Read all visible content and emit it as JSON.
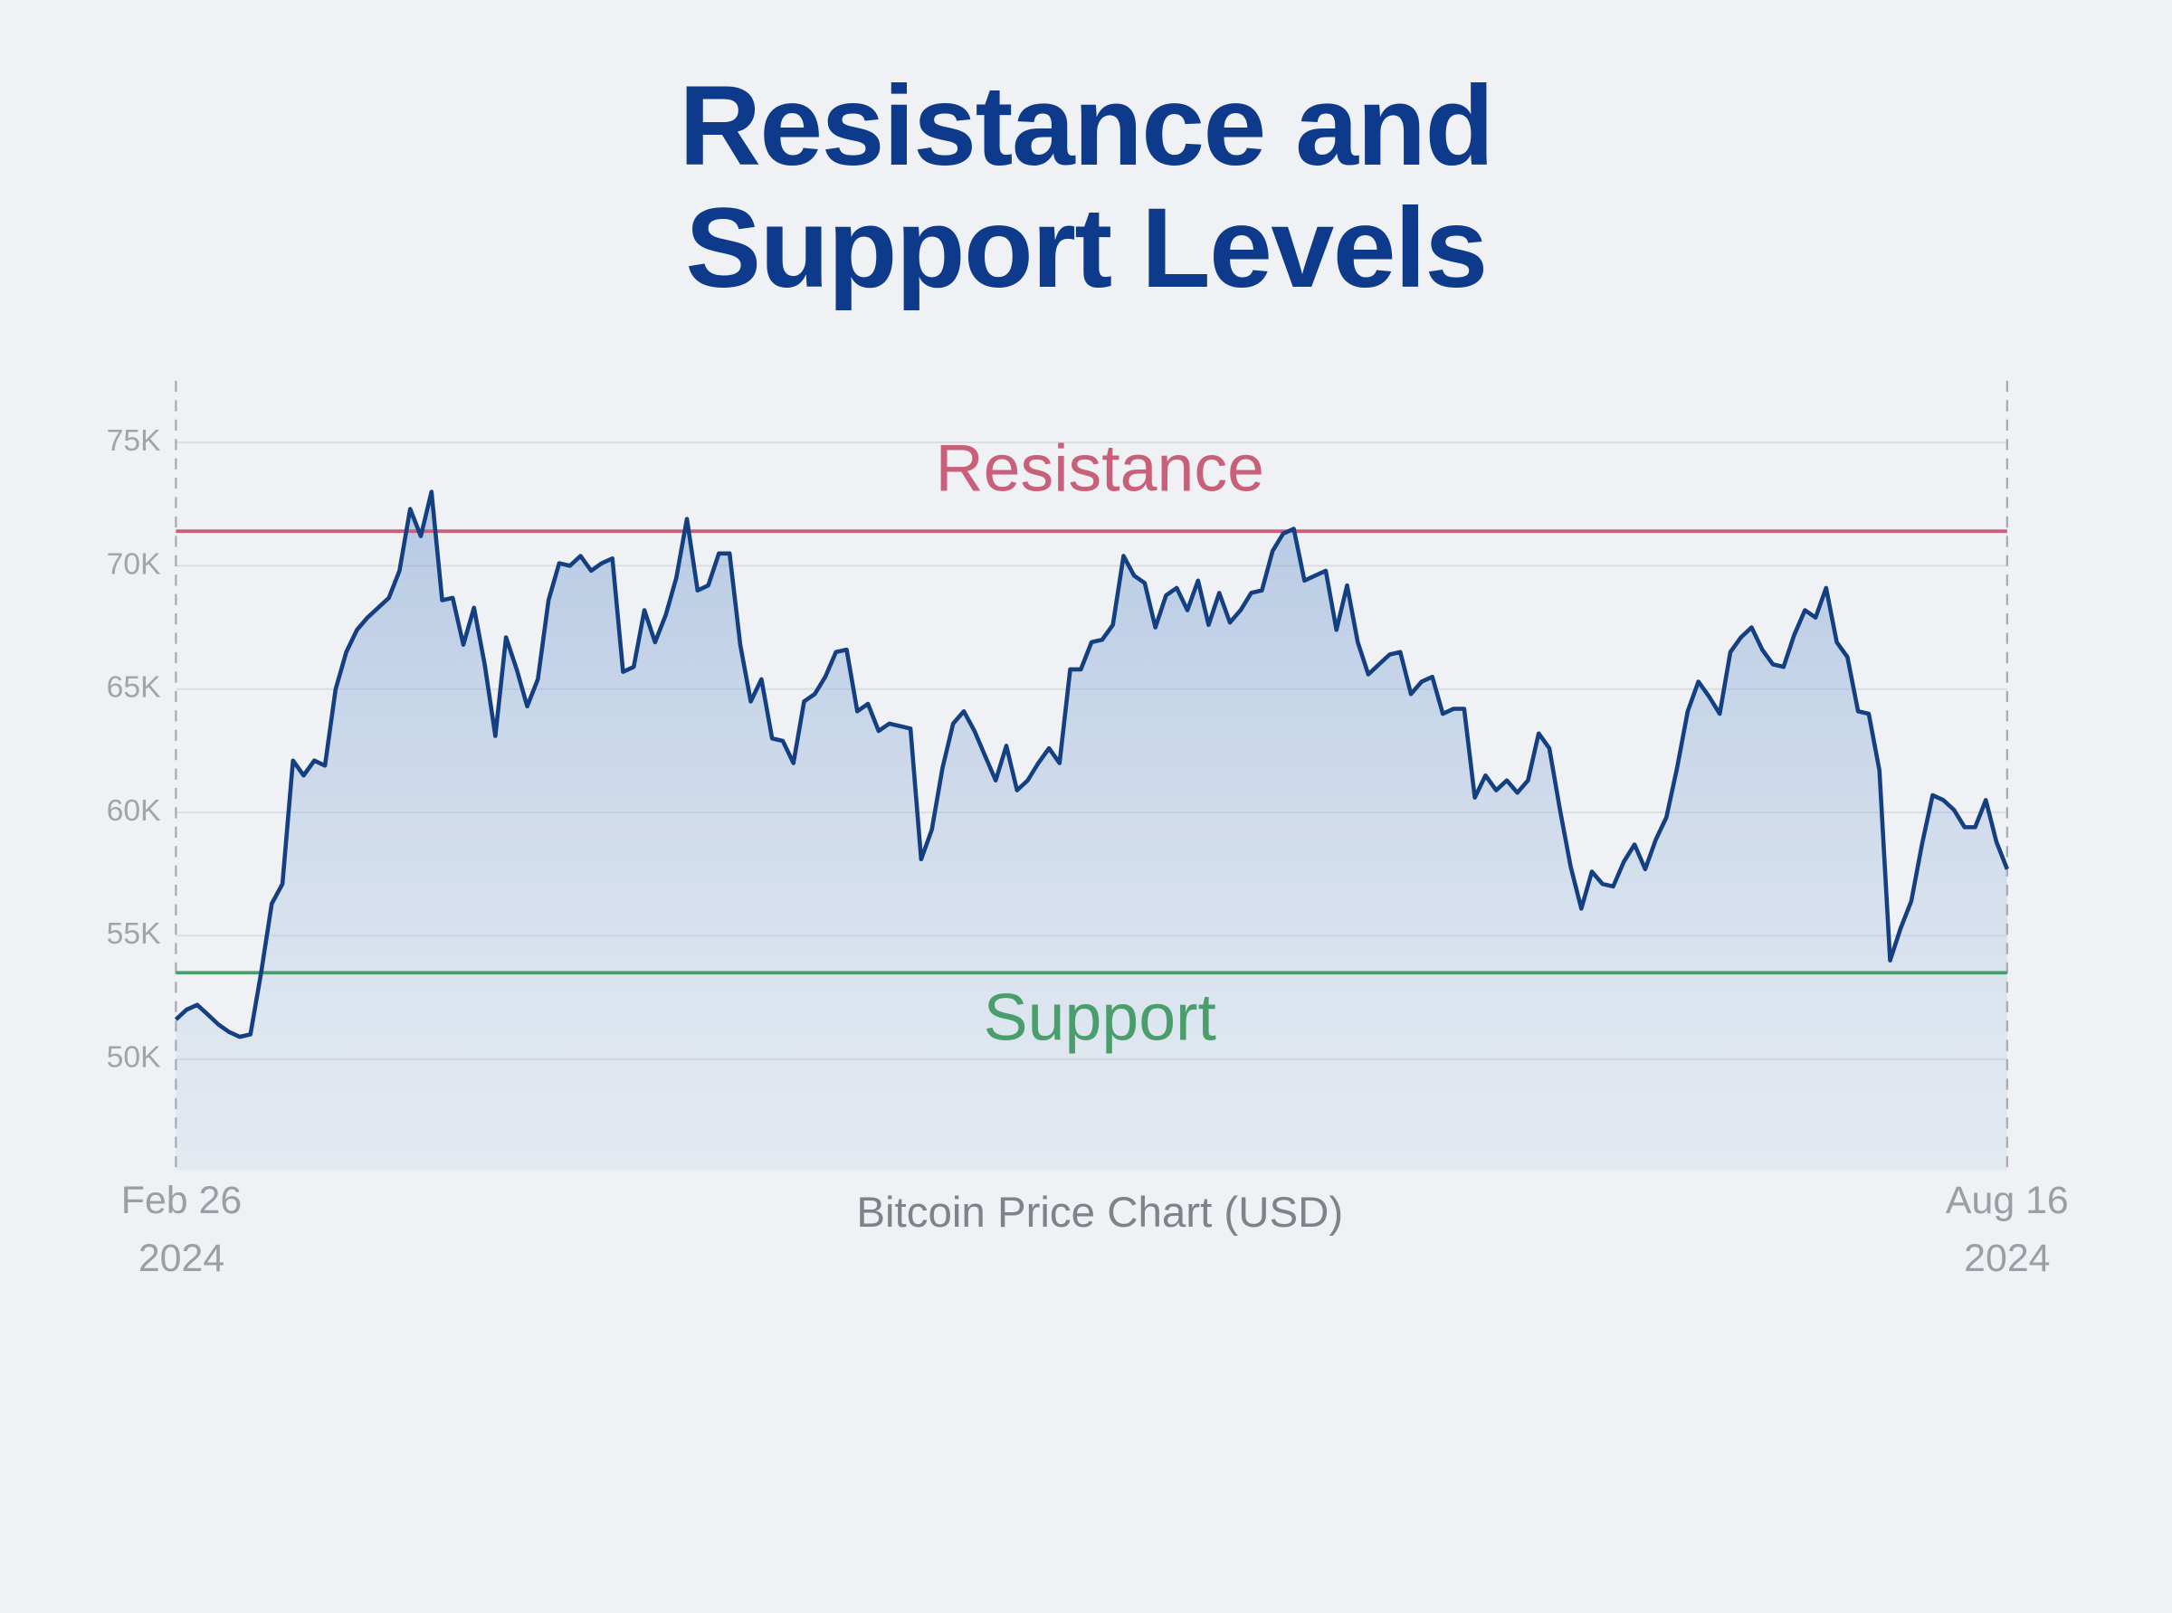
{
  "chart_data": {
    "type": "area",
    "title": "Resistance and Support Levels",
    "xlabel": "Bitcoin Price Chart (USD)",
    "xlim": [
      "2024-02-26",
      "2024-08-16"
    ],
    "xticks": [
      {
        "value": "2024-02-26",
        "label": "Feb 26\n2024"
      },
      {
        "value": "2024-08-16",
        "label": "Aug 16\n2024"
      }
    ],
    "ylim": [
      45500,
      77500
    ],
    "yticks": [
      {
        "value": 50000,
        "label": "50K"
      },
      {
        "value": 55000,
        "label": "55K"
      },
      {
        "value": 60000,
        "label": "60K"
      },
      {
        "value": 65000,
        "label": "65K"
      },
      {
        "value": 70000,
        "label": "70K"
      },
      {
        "value": 75000,
        "label": "75K"
      }
    ],
    "grid": true,
    "levels": [
      {
        "name": "Resistance",
        "value": 71400,
        "color": "#c9607a"
      },
      {
        "name": "Support",
        "value": 53500,
        "color": "#4a9e6c"
      }
    ],
    "color": "#143f80",
    "x": [
      "2024-02-26",
      "2024-02-27",
      "2024-02-28",
      "2024-02-29",
      "2024-03-01",
      "2024-03-02",
      "2024-03-03",
      "2024-03-04",
      "2024-03-05",
      "2024-03-06",
      "2024-03-07",
      "2024-03-08",
      "2024-03-09",
      "2024-03-10",
      "2024-03-11",
      "2024-03-12",
      "2024-03-13",
      "2024-03-14",
      "2024-03-15",
      "2024-03-16",
      "2024-03-17",
      "2024-03-18",
      "2024-03-19",
      "2024-03-20",
      "2024-03-21",
      "2024-03-22",
      "2024-03-23",
      "2024-03-24",
      "2024-03-25",
      "2024-03-26",
      "2024-03-27",
      "2024-03-28",
      "2024-03-29",
      "2024-03-30",
      "2024-03-31",
      "2024-04-01",
      "2024-04-02",
      "2024-04-03",
      "2024-04-04",
      "2024-04-05",
      "2024-04-06",
      "2024-04-07",
      "2024-04-08",
      "2024-04-09",
      "2024-04-10",
      "2024-04-11",
      "2024-04-12",
      "2024-04-13",
      "2024-04-14",
      "2024-04-15",
      "2024-04-16",
      "2024-04-17",
      "2024-04-18",
      "2024-04-19",
      "2024-04-20",
      "2024-04-21",
      "2024-04-22",
      "2024-04-23",
      "2024-04-24",
      "2024-04-25",
      "2024-04-26",
      "2024-04-27",
      "2024-04-28",
      "2024-04-29",
      "2024-04-30",
      "2024-05-01",
      "2024-05-02",
      "2024-05-03",
      "2024-05-04",
      "2024-05-05",
      "2024-05-06",
      "2024-05-07",
      "2024-05-08",
      "2024-05-09",
      "2024-05-10",
      "2024-05-11",
      "2024-05-12",
      "2024-05-13",
      "2024-05-14",
      "2024-05-15",
      "2024-05-16",
      "2024-05-17",
      "2024-05-18",
      "2024-05-19",
      "2024-05-20",
      "2024-05-21",
      "2024-05-22",
      "2024-05-23",
      "2024-05-24",
      "2024-05-25",
      "2024-05-26",
      "2024-05-27",
      "2024-05-28",
      "2024-05-29",
      "2024-05-30",
      "2024-05-31",
      "2024-06-01",
      "2024-06-02",
      "2024-06-03",
      "2024-06-04",
      "2024-06-05",
      "2024-06-06",
      "2024-06-07",
      "2024-06-08",
      "2024-06-09",
      "2024-06-10",
      "2024-06-11",
      "2024-06-12",
      "2024-06-13",
      "2024-06-14",
      "2024-06-15",
      "2024-06-16",
      "2024-06-17",
      "2024-06-18",
      "2024-06-19",
      "2024-06-20",
      "2024-06-21",
      "2024-06-22",
      "2024-06-23",
      "2024-06-24",
      "2024-06-25",
      "2024-06-26",
      "2024-06-27",
      "2024-06-28",
      "2024-06-29",
      "2024-06-30",
      "2024-07-01",
      "2024-07-02",
      "2024-07-03",
      "2024-07-04",
      "2024-07-05",
      "2024-07-06",
      "2024-07-07",
      "2024-07-08",
      "2024-07-09",
      "2024-07-10",
      "2024-07-11",
      "2024-07-12",
      "2024-07-13",
      "2024-07-14",
      "2024-07-15",
      "2024-07-16",
      "2024-07-17",
      "2024-07-18",
      "2024-07-19",
      "2024-07-20",
      "2024-07-21",
      "2024-07-22",
      "2024-07-23",
      "2024-07-24",
      "2024-07-25",
      "2024-07-26",
      "2024-07-27",
      "2024-07-28",
      "2024-07-29",
      "2024-07-30",
      "2024-07-31",
      "2024-08-01",
      "2024-08-02",
      "2024-08-03",
      "2024-08-04",
      "2024-08-05",
      "2024-08-06",
      "2024-08-07",
      "2024-08-08",
      "2024-08-09",
      "2024-08-10",
      "2024-08-11",
      "2024-08-12",
      "2024-08-13",
      "2024-08-14",
      "2024-08-15",
      "2024-08-16"
    ],
    "values": [
      51600,
      52000,
      52200,
      51800,
      51400,
      51100,
      50900,
      51000,
      53500,
      56300,
      57100,
      62100,
      61500,
      62100,
      61900,
      65000,
      66500,
      67400,
      67900,
      68300,
      68700,
      69800,
      72300,
      71200,
      73000,
      68600,
      68700,
      66800,
      68300,
      66000,
      63100,
      67100,
      65800,
      64300,
      65400,
      68600,
      70100,
      70000,
      70400,
      69800,
      70100,
      70300,
      65700,
      65900,
      68200,
      66900,
      68000,
      69500,
      71900,
      69000,
      69200,
      70500,
      70500,
      66800,
      64500,
      65400,
      63000,
      62900,
      62000,
      64500,
      64800,
      65500,
      66500,
      66600,
      64100,
      64400,
      63300,
      63600,
      63500,
      63400,
      58100,
      59300,
      61800,
      63600,
      64100,
      63300,
      62300,
      61300,
      62700,
      60900,
      61300,
      62000,
      62600,
      62000,
      65800,
      65800,
      66900,
      67000,
      67600,
      70400,
      69600,
      69300,
      67500,
      68800,
      69100,
      68200,
      69400,
      67600,
      68900,
      67700,
      68200,
      68900,
      69000,
      70600,
      71300,
      71500,
      69400,
      69600,
      69800,
      67400,
      69200,
      66900,
      65600,
      66000,
      66400,
      66500,
      64800,
      65300,
      65500,
      64000,
      64200,
      64200,
      60600,
      61500,
      60900,
      61300,
      60800,
      61300,
      63200,
      62600,
      60100,
      57800,
      56100,
      57600,
      57100,
      57000,
      58000,
      58700,
      57700,
      58900,
      59800,
      61800,
      64100,
      65300,
      64700,
      64000,
      66500,
      67100,
      67500,
      66600,
      66000,
      65900,
      67200,
      68200,
      67900,
      69100,
      66900,
      66300,
      64100,
      64000,
      61700,
      54000,
      55300,
      56400,
      58700,
      60700,
      60500,
      60100,
      59400,
      59400,
      60500,
      58800,
      57700
    ]
  }
}
